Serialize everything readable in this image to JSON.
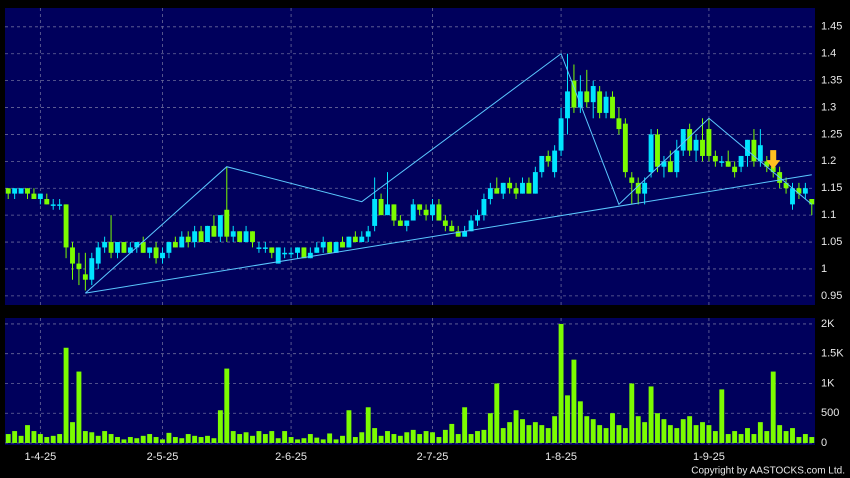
{
  "chart_data": [
    {
      "type": "candlestick",
      "up_color": "#00e5ff",
      "down_color": "#7cfc00",
      "line_color": "#5bc8ff",
      "signal_color": "#ffc020",
      "xlim": [
        -0.5,
        125.5
      ],
      "xticks": [
        {
          "value": 5,
          "label": "1-4-25"
        },
        {
          "value": 24,
          "label": "2-5-25"
        },
        {
          "value": 44,
          "label": "2-6-25"
        },
        {
          "value": 66,
          "label": "2-7-25"
        },
        {
          "value": 86,
          "label": "1-8-25"
        },
        {
          "value": 109,
          "label": "1-9-25"
        }
      ],
      "ylim": [
        0.933,
        1.485
      ],
      "yticks": [
        0.95,
        1,
        1.05,
        1.1,
        1.15,
        1.2,
        1.25,
        1.3,
        1.35,
        1.4,
        1.45
      ],
      "grid": true,
      "ohlc": [
        [
          1.15,
          1.15,
          1.13,
          1.14
        ],
        [
          1.14,
          1.15,
          1.13,
          1.15
        ],
        [
          1.14,
          1.15,
          1.14,
          1.15
        ],
        [
          1.15,
          1.15,
          1.13,
          1.14
        ],
        [
          1.14,
          1.15,
          1.13,
          1.13
        ],
        [
          1.13,
          1.14,
          1.12,
          1.14
        ],
        [
          1.13,
          1.14,
          1.12,
          1.12
        ],
        [
          1.12,
          1.13,
          1.11,
          1.12
        ],
        [
          1.12,
          1.13,
          1.11,
          1.12
        ],
        [
          1.12,
          1.12,
          1.02,
          1.04
        ],
        [
          1.04,
          1.05,
          0.98,
          1.01
        ],
        [
          1.01,
          1.03,
          0.97,
          1.0
        ],
        [
          0.99,
          1.03,
          0.96,
          0.98
        ],
        [
          0.98,
          1.03,
          0.97,
          1.02
        ],
        [
          1.01,
          1.05,
          1.0,
          1.04
        ],
        [
          1.04,
          1.06,
          1.03,
          1.05
        ],
        [
          1.05,
          1.1,
          1.02,
          1.03
        ],
        [
          1.03,
          1.05,
          1.02,
          1.05
        ],
        [
          1.05,
          1.05,
          1.03,
          1.03
        ],
        [
          1.03,
          1.05,
          1.03,
          1.04
        ],
        [
          1.04,
          1.05,
          1.03,
          1.05
        ],
        [
          1.05,
          1.06,
          1.03,
          1.03
        ],
        [
          1.03,
          1.04,
          1.02,
          1.04
        ],
        [
          1.04,
          1.05,
          1.01,
          1.02
        ],
        [
          1.02,
          1.04,
          1.01,
          1.03
        ],
        [
          1.03,
          1.05,
          1.02,
          1.05
        ],
        [
          1.05,
          1.06,
          1.04,
          1.04
        ],
        [
          1.04,
          1.07,
          1.04,
          1.06
        ],
        [
          1.06,
          1.07,
          1.04,
          1.05
        ],
        [
          1.05,
          1.08,
          1.04,
          1.07
        ],
        [
          1.07,
          1.08,
          1.05,
          1.05
        ],
        [
          1.05,
          1.08,
          1.05,
          1.08
        ],
        [
          1.08,
          1.1,
          1.06,
          1.06
        ],
        [
          1.06,
          1.1,
          1.05,
          1.1
        ],
        [
          1.11,
          1.19,
          1.05,
          1.06
        ],
        [
          1.06,
          1.08,
          1.05,
          1.07
        ],
        [
          1.07,
          1.07,
          1.05,
          1.05
        ],
        [
          1.05,
          1.08,
          1.05,
          1.07
        ],
        [
          1.07,
          1.07,
          1.04,
          1.05
        ],
        [
          1.04,
          1.05,
          1.03,
          1.04
        ],
        [
          1.04,
          1.05,
          1.03,
          1.04
        ],
        [
          1.04,
          1.04,
          1.02,
          1.03
        ],
        [
          1.01,
          1.04,
          1.01,
          1.04
        ],
        [
          1.03,
          1.04,
          1.02,
          1.03
        ],
        [
          1.03,
          1.04,
          1.02,
          1.03
        ],
        [
          1.03,
          1.04,
          1.02,
          1.04
        ],
        [
          1.04,
          1.04,
          1.02,
          1.02
        ],
        [
          1.02,
          1.04,
          1.02,
          1.03
        ],
        [
          1.03,
          1.05,
          1.03,
          1.04
        ],
        [
          1.04,
          1.06,
          1.03,
          1.05
        ],
        [
          1.05,
          1.05,
          1.03,
          1.03
        ],
        [
          1.03,
          1.05,
          1.03,
          1.05
        ],
        [
          1.05,
          1.06,
          1.04,
          1.04
        ],
        [
          1.04,
          1.06,
          1.04,
          1.06
        ],
        [
          1.06,
          1.07,
          1.05,
          1.05
        ],
        [
          1.05,
          1.07,
          1.05,
          1.06
        ],
        [
          1.06,
          1.08,
          1.05,
          1.07
        ],
        [
          1.08,
          1.17,
          1.07,
          1.13
        ],
        [
          1.13,
          1.14,
          1.1,
          1.1
        ],
        [
          1.1,
          1.18,
          1.1,
          1.12
        ],
        [
          1.12,
          1.12,
          1.08,
          1.09
        ],
        [
          1.09,
          1.1,
          1.08,
          1.08
        ],
        [
          1.08,
          1.09,
          1.07,
          1.09
        ],
        [
          1.09,
          1.13,
          1.09,
          1.12
        ],
        [
          1.12,
          1.12,
          1.1,
          1.11
        ],
        [
          1.11,
          1.12,
          1.09,
          1.1
        ],
        [
          1.1,
          1.13,
          1.09,
          1.12
        ],
        [
          1.12,
          1.13,
          1.09,
          1.09
        ],
        [
          1.09,
          1.1,
          1.07,
          1.08
        ],
        [
          1.08,
          1.09,
          1.07,
          1.07
        ],
        [
          1.07,
          1.08,
          1.06,
          1.06
        ],
        [
          1.06,
          1.08,
          1.06,
          1.07
        ],
        [
          1.07,
          1.1,
          1.07,
          1.09
        ],
        [
          1.09,
          1.11,
          1.08,
          1.1
        ],
        [
          1.1,
          1.14,
          1.09,
          1.13
        ],
        [
          1.13,
          1.16,
          1.12,
          1.15
        ],
        [
          1.15,
          1.17,
          1.14,
          1.14
        ],
        [
          1.14,
          1.16,
          1.13,
          1.16
        ],
        [
          1.16,
          1.17,
          1.14,
          1.15
        ],
        [
          1.15,
          1.16,
          1.13,
          1.14
        ],
        [
          1.14,
          1.17,
          1.14,
          1.16
        ],
        [
          1.16,
          1.17,
          1.14,
          1.14
        ],
        [
          1.14,
          1.19,
          1.14,
          1.18
        ],
        [
          1.18,
          1.21,
          1.17,
          1.21
        ],
        [
          1.21,
          1.22,
          1.19,
          1.2
        ],
        [
          1.18,
          1.23,
          1.17,
          1.22
        ],
        [
          1.22,
          1.3,
          1.21,
          1.28
        ],
        [
          1.28,
          1.4,
          1.25,
          1.33
        ],
        [
          1.35,
          1.38,
          1.29,
          1.3
        ],
        [
          1.3,
          1.36,
          1.29,
          1.33
        ],
        [
          1.33,
          1.37,
          1.3,
          1.31
        ],
        [
          1.31,
          1.35,
          1.28,
          1.34
        ],
        [
          1.33,
          1.34,
          1.28,
          1.29
        ],
        [
          1.29,
          1.33,
          1.28,
          1.32
        ],
        [
          1.32,
          1.33,
          1.28,
          1.28
        ],
        [
          1.28,
          1.3,
          1.25,
          1.26
        ],
        [
          1.27,
          1.28,
          1.17,
          1.18
        ],
        [
          1.17,
          1.18,
          1.12,
          1.16
        ],
        [
          1.16,
          1.17,
          1.12,
          1.14
        ],
        [
          1.14,
          1.17,
          1.12,
          1.16
        ],
        [
          1.18,
          1.26,
          1.17,
          1.25
        ],
        [
          1.25,
          1.26,
          1.18,
          1.19
        ],
        [
          1.19,
          1.21,
          1.17,
          1.2
        ],
        [
          1.2,
          1.22,
          1.18,
          1.18
        ],
        [
          1.18,
          1.24,
          1.17,
          1.22
        ],
        [
          1.22,
          1.26,
          1.21,
          1.26
        ],
        [
          1.26,
          1.27,
          1.21,
          1.22
        ],
        [
          1.22,
          1.25,
          1.2,
          1.24
        ],
        [
          1.24,
          1.28,
          1.2,
          1.21
        ],
        [
          1.26,
          1.28,
          1.2,
          1.21
        ],
        [
          1.21,
          1.22,
          1.19,
          1.2
        ],
        [
          1.2,
          1.21,
          1.19,
          1.2
        ],
        [
          1.2,
          1.22,
          1.19,
          1.19
        ],
        [
          1.19,
          1.2,
          1.17,
          1.18
        ],
        [
          1.19,
          1.21,
          1.18,
          1.21
        ],
        [
          1.21,
          1.24,
          1.19,
          1.24
        ],
        [
          1.24,
          1.26,
          1.19,
          1.2
        ],
        [
          1.2,
          1.26,
          1.19,
          1.23
        ],
        [
          1.2,
          1.21,
          1.18,
          1.19
        ],
        [
          1.19,
          1.21,
          1.17,
          1.18
        ],
        [
          1.18,
          1.19,
          1.15,
          1.16
        ],
        [
          1.16,
          1.17,
          1.14,
          1.15
        ],
        [
          1.12,
          1.16,
          1.11,
          1.15
        ],
        [
          1.15,
          1.16,
          1.13,
          1.14
        ],
        [
          1.14,
          1.16,
          1.13,
          1.15
        ],
        [
          1.13,
          1.13,
          1.1,
          1.12
        ]
      ],
      "zigzag": {
        "x": [
          12,
          34,
          55,
          86,
          95,
          109,
          125
        ],
        "y": [
          0.955,
          1.19,
          1.125,
          1.4,
          1.12,
          1.28,
          1.12
        ]
      },
      "support": {
        "x": [
          12,
          125
        ],
        "y": [
          0.955,
          1.175
        ]
      },
      "signal": {
        "x": 119,
        "y": 1.18
      }
    },
    {
      "type": "bar",
      "color": "#7cfc00",
      "xlim": [
        -0.5,
        125.5
      ],
      "ylim": [
        -34,
        2100
      ],
      "yticks": [
        0,
        500,
        {
          "value": 1000,
          "label": "1K"
        },
        {
          "value": 1500,
          "label": "1.5K"
        },
        {
          "value": 2000,
          "label": "2K"
        }
      ],
      "grid": true,
      "values": [
        150,
        200,
        120,
        300,
        200,
        150,
        100,
        120,
        150,
        1600,
        350,
        1200,
        200,
        180,
        120,
        200,
        150,
        100,
        60,
        100,
        80,
        120,
        150,
        100,
        60,
        170,
        100,
        80,
        150,
        120,
        100,
        120,
        80,
        550,
        1250,
        200,
        150,
        180,
        120,
        200,
        150,
        200,
        80,
        200,
        100,
        60,
        80,
        150,
        90,
        60,
        160,
        60,
        120,
        550,
        100,
        180,
        600,
        250,
        120,
        200,
        150,
        120,
        180,
        220,
        150,
        200,
        180,
        100,
        220,
        320,
        150,
        600,
        150,
        200,
        220,
        500,
        1000,
        250,
        350,
        550,
        400,
        300,
        350,
        300,
        250,
        450,
        2000,
        800,
        1400,
        700,
        450,
        400,
        300,
        250,
        500,
        300,
        250,
        1000,
        450,
        350,
        950,
        500,
        400,
        300,
        250,
        400,
        450,
        300,
        350,
        300,
        200,
        900,
        150,
        200,
        150,
        250,
        150,
        350,
        200,
        1200,
        300,
        200,
        250,
        100,
        150,
        100
      ]
    },
    {
      "type": "footer",
      "text": "Copyright by AASTOCKS.com Ltd."
    }
  ]
}
